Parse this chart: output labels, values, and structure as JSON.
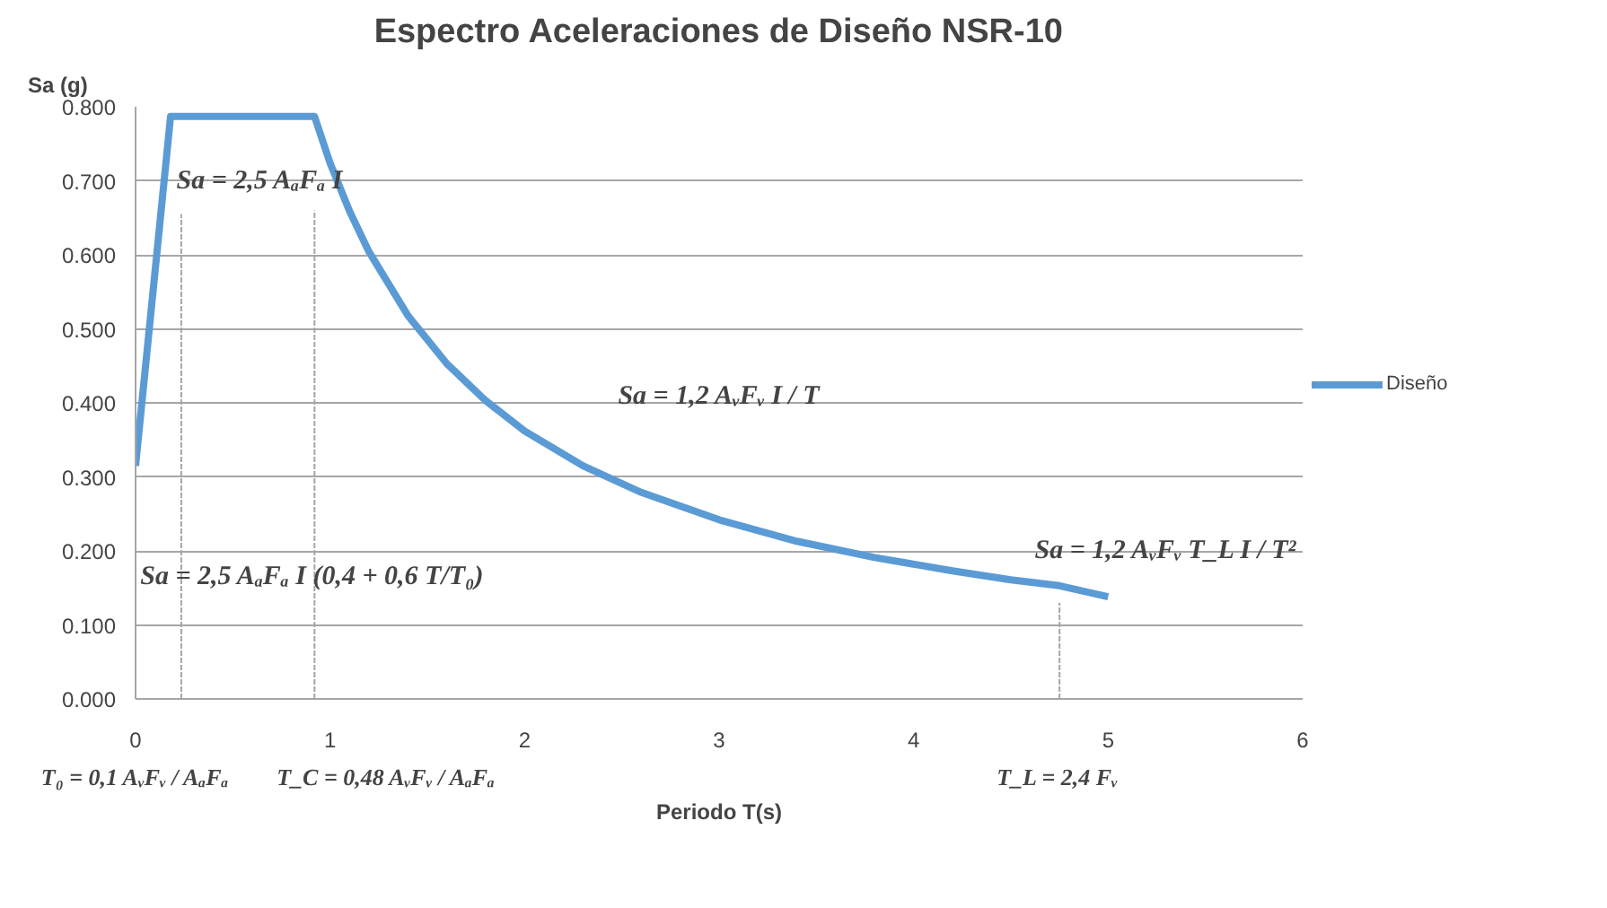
{
  "chart_data": {
    "type": "line",
    "title": "Espectro Aceleraciones de Diseño NSR-10",
    "xlabel": "Periodo T(s)",
    "ylabel": "Sa (g)",
    "xlim": [
      0,
      6
    ],
    "xticks": [
      0,
      1,
      2,
      3,
      4,
      5,
      6
    ],
    "ylim": [
      0,
      0.8
    ],
    "yticks": [
      {
        "value": 0,
        "label": "0.000"
      },
      {
        "value": 0.1,
        "label": "0.100"
      },
      {
        "value": 0.2,
        "label": "0.200"
      },
      {
        "value": 0.3,
        "label": "0.300"
      },
      {
        "value": 0.4,
        "label": "0.400"
      },
      {
        "value": 0.5,
        "label": "0.500"
      },
      {
        "value": 0.6,
        "label": "0.600"
      },
      {
        "value": 0.7,
        "label": "0.700"
      },
      {
        "value": 0.8,
        "label": "0.800"
      }
    ],
    "grid": "y",
    "legend": "right",
    "marker": "none",
    "series": [
      {
        "name": "Diseño",
        "color": "#5b9bd5",
        "x": [
          0,
          0.18,
          0.92,
          1.0,
          1.1,
          1.2,
          1.4,
          1.6,
          1.8,
          2.0,
          2.3,
          2.6,
          3.0,
          3.4,
          3.8,
          4.2,
          4.5,
          4.75,
          5.0
        ],
        "values": [
          0.315,
          0.787,
          0.787,
          0.724,
          0.659,
          0.604,
          0.518,
          0.453,
          0.403,
          0.362,
          0.315,
          0.279,
          0.242,
          0.213,
          0.191,
          0.173,
          0.161,
          0.153,
          0.138
        ]
      },
      {
        "color": "#a6a6a6",
        "line_style": "dashed",
        "x": [
          0.235,
          0.235
        ],
        "values": [
          0,
          0.655
        ]
      },
      {
        "color": "#a6a6a6",
        "line_style": "dashed",
        "x": [
          0.92,
          0.92
        ],
        "values": [
          0,
          0.66
        ]
      },
      {
        "color": "#a6a6a6",
        "line_style": "dashed",
        "x": [
          4.75,
          4.75
        ],
        "values": [
          0,
          0.13
        ]
      }
    ],
    "annotations": [
      "Sa = 2,5 AₐFₐ I",
      "Sa = 1,2 AᵥFᵥ I / T",
      "Sa = 2,5 AₐFₐ I (0,4 + 0,6 T/T₀)",
      "Sa = 1,2 AᵥFᵥ T_L I / T²",
      "T₀ = 0,1 AᵥFᵥ / AₐFₐ",
      "T_C = 0,48 AᵥFᵥ / AₐFₐ",
      "T_L = 2,4 Fᵥ"
    ]
  }
}
